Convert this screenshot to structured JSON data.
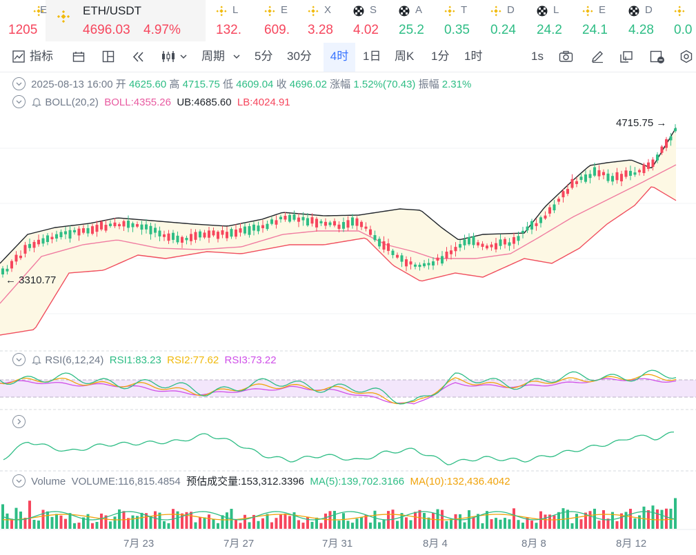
{
  "ticker": {
    "active": {
      "name": "ETH/USDT",
      "price": "4696.03",
      "change": "4.97%"
    },
    "items": [
      {
        "name": "E",
        "price": "1205",
        "color": "#f6465d",
        "icon": "bnb-icon"
      },
      {
        "name": "L",
        "price": "132.",
        "color": "#f6465d",
        "icon": "bnb-icon"
      },
      {
        "name": "E",
        "price": "609.",
        "color": "#f6465d",
        "icon": "bnb-icon"
      },
      {
        "name": "X",
        "price": "3.28",
        "color": "#f6465d",
        "icon": "bnb-icon"
      },
      {
        "name": "S",
        "price": "4.02",
        "color": "#f6465d",
        "icon": "contract-icon"
      },
      {
        "name": "A",
        "price": "25.2",
        "color": "#2ebd85",
        "icon": "contract-icon"
      },
      {
        "name": "T",
        "price": "0.35",
        "color": "#2ebd85",
        "icon": "bnb-icon"
      },
      {
        "name": "D",
        "price": "0.24",
        "color": "#2ebd85",
        "icon": "bnb-icon"
      },
      {
        "name": "L",
        "price": "24.2",
        "color": "#2ebd85",
        "icon": "contract-icon"
      },
      {
        "name": "E",
        "price": "24.1",
        "color": "#2ebd85",
        "icon": "bnb-icon"
      },
      {
        "name": "D",
        "price": "4.28",
        "color": "#2ebd85",
        "icon": "contract-icon"
      },
      {
        "name": "",
        "price": "0.0",
        "color": "#2ebd85",
        "icon": "bnb-icon"
      }
    ]
  },
  "toolbar": {
    "indicator": "指标",
    "period": "周期",
    "intervals": [
      "5分",
      "30分",
      "4时",
      "1日",
      "周K",
      "1分",
      "1时"
    ],
    "selected_interval": "4时",
    "seconds": "1s"
  },
  "ohlc": {
    "date": "2025-08-13 16:00",
    "open_label": "开",
    "open": "4625.60",
    "high_label": "高",
    "high": "4715.75",
    "low_label": "低",
    "low": "4609.04",
    "close_label": "收",
    "close": "4696.02",
    "change_label": "涨幅",
    "change": "1.52%(70.43)",
    "amp_label": "振幅",
    "amp": "2.31%"
  },
  "boll": {
    "title": "BOLL(20,2)",
    "boll": "BOLL:4355.26",
    "ub": "UB:4685.60",
    "lb": "LB:4024.91"
  },
  "price_marks": {
    "high": "4715.75 →",
    "low": "← 3310.77"
  },
  "rsi": {
    "title": "RSI(6,12,24)",
    "rsi1": "RSI1:83.23",
    "rsi2": "RSI2:77.62",
    "rsi3": "RSI3:73.22"
  },
  "volume": {
    "title": "Volume",
    "value": "VOLUME:116,815.4854",
    "estimate": "预估成交量:153,312.3396",
    "ma5": "MA(5):139,702.3166",
    "ma10": "MA(10):132,436.4042"
  },
  "x_axis": [
    "7月 23",
    "7月 27",
    "7月 31",
    "8月 4",
    "8月 8",
    "8月 12"
  ],
  "colors": {
    "up": "#2ebd85",
    "down": "#f6465d",
    "accent": "#3874ff",
    "boll_fill": "#fdf8e4"
  },
  "chart_data": {
    "type": "candlestick",
    "price_high": 4715.75,
    "price_low": 3310.77,
    "rsi_levels": [
      "RSI1",
      "RSI2",
      "RSI3"
    ]
  }
}
